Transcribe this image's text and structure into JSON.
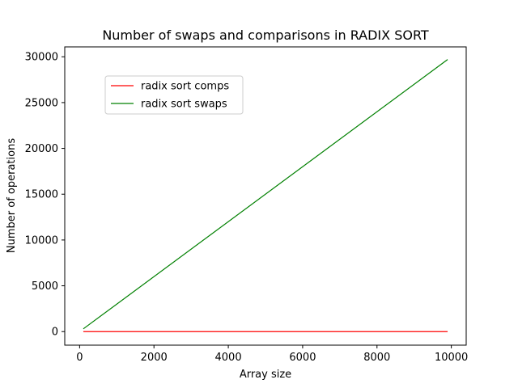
{
  "chart_data": {
    "type": "line",
    "title": "Number of swaps and comparisons in RADIX SORT",
    "xlabel": "Array size",
    "ylabel": "Number of operations",
    "xlim": [
      -400,
      10400
    ],
    "ylim": [
      -1480,
      31080
    ],
    "xticks": [
      0,
      2000,
      4000,
      6000,
      8000,
      10000
    ],
    "yticks": [
      0,
      5000,
      10000,
      15000,
      20000,
      25000,
      30000
    ],
    "grid": false,
    "legend_position": "upper-left",
    "series": [
      {
        "name": "radix sort comps",
        "color": "#ff0000",
        "x": [
          100,
          9900
        ],
        "y": [
          0,
          0
        ]
      },
      {
        "name": "radix sort swaps",
        "color": "#008000",
        "x": [
          100,
          9900
        ],
        "y": [
          300,
          29700
        ]
      }
    ]
  }
}
